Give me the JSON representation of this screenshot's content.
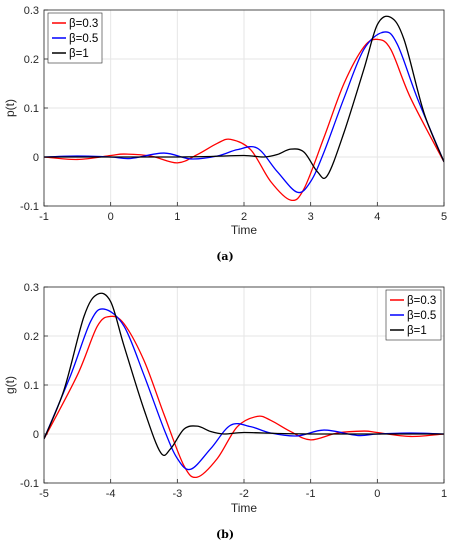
{
  "chart_data": [
    {
      "type": "line",
      "panel": "(a)",
      "xlabel": "Time",
      "ylabel": "p(t)",
      "xlim": [
        -1,
        5
      ],
      "ylim": [
        -0.1,
        0.3
      ],
      "xticks": [
        "-1",
        "0",
        "1",
        "2",
        "3",
        "4",
        "5"
      ],
      "yticks": [
        "-0.1",
        "0",
        "0.1",
        "0.2",
        "0.3"
      ],
      "grid": true,
      "legend_position": "top-left",
      "series": [
        {
          "name": "β=0.3",
          "color": "#ff0000",
          "x": [
            -1,
            -0.5,
            0,
            0.2,
            0.6,
            1,
            1.3,
            1.6,
            1.8,
            2.1,
            2.4,
            2.7,
            2.9,
            3.2,
            3.5,
            3.8,
            4.0,
            4.2,
            4.5,
            5
          ],
          "y": [
            0,
            -0.005,
            0.003,
            0.006,
            0.002,
            -0.012,
            0.005,
            0.028,
            0.036,
            0.015,
            -0.05,
            -0.088,
            -0.065,
            0.04,
            0.15,
            0.225,
            0.24,
            0.22,
            0.12,
            -0.01
          ]
        },
        {
          "name": "β=0.5",
          "color": "#0000ff",
          "x": [
            -1,
            -0.5,
            0,
            0.3,
            0.8,
            1.2,
            1.6,
            1.9,
            2.2,
            2.5,
            2.8,
            3.0,
            3.2,
            3.5,
            3.8,
            4.1,
            4.3,
            4.6,
            5
          ],
          "y": [
            0,
            0.002,
            0,
            -0.003,
            0.008,
            -0.004,
            0.002,
            0.015,
            0.018,
            -0.03,
            -0.072,
            -0.05,
            0.01,
            0.12,
            0.22,
            0.255,
            0.23,
            0.12,
            -0.01
          ]
        },
        {
          "name": "β=1",
          "color": "#000000",
          "x": [
            -1,
            -0.5,
            0,
            0.5,
            1,
            1.5,
            2,
            2.3,
            2.5,
            2.7,
            2.9,
            3.1,
            3.25,
            3.5,
            3.8,
            4.0,
            4.2,
            4.4,
            4.7,
            5
          ],
          "y": [
            0,
            0,
            0,
            0,
            0,
            0.001,
            0.003,
            0,
            0.005,
            0.016,
            0.01,
            -0.03,
            -0.038,
            0.05,
            0.18,
            0.27,
            0.285,
            0.24,
            0.09,
            -0.01
          ]
        }
      ]
    },
    {
      "type": "line",
      "panel": "(b)",
      "xlabel": "Time",
      "ylabel": "g(t)",
      "xlim": [
        -5,
        1
      ],
      "ylim": [
        -0.1,
        0.3
      ],
      "xticks": [
        "-5",
        "-4",
        "-3",
        "-2",
        "-1",
        "0",
        "1"
      ],
      "yticks": [
        "-0.1",
        "0",
        "0.1",
        "0.2",
        "0.3"
      ],
      "grid": true,
      "legend_position": "top-right",
      "series": [
        {
          "name": "β=0.3",
          "color": "#ff0000",
          "x": [
            -5,
            -4.5,
            -4.2,
            -4.0,
            -3.8,
            -3.5,
            -3.2,
            -2.9,
            -2.7,
            -2.4,
            -2.1,
            -1.8,
            -1.6,
            -1.3,
            -1,
            -0.6,
            -0.2,
            0,
            0.5,
            1
          ],
          "y": [
            -0.01,
            0.12,
            0.22,
            0.24,
            0.225,
            0.15,
            0.04,
            -0.065,
            -0.088,
            -0.05,
            0.015,
            0.036,
            0.028,
            0.005,
            -0.012,
            0.002,
            0.006,
            0.003,
            -0.005,
            0
          ]
        },
        {
          "name": "β=0.5",
          "color": "#0000ff",
          "x": [
            -5,
            -4.6,
            -4.3,
            -4.1,
            -3.8,
            -3.5,
            -3.2,
            -3.0,
            -2.8,
            -2.5,
            -2.2,
            -1.9,
            -1.6,
            -1.2,
            -0.8,
            -0.3,
            0,
            0.5,
            1
          ],
          "y": [
            -0.01,
            0.12,
            0.23,
            0.255,
            0.22,
            0.12,
            0.01,
            -0.05,
            -0.072,
            -0.03,
            0.018,
            0.015,
            0.002,
            -0.004,
            0.008,
            -0.003,
            0,
            0.002,
            0
          ]
        },
        {
          "name": "β=1",
          "color": "#000000",
          "x": [
            -5,
            -4.7,
            -4.4,
            -4.2,
            -4.0,
            -3.8,
            -3.5,
            -3.25,
            -3.1,
            -2.9,
            -2.7,
            -2.5,
            -2.3,
            -2,
            -1.5,
            -1,
            -0.5,
            0,
            0.5,
            1
          ],
          "y": [
            -0.01,
            0.09,
            0.24,
            0.285,
            0.27,
            0.18,
            0.05,
            -0.038,
            -0.03,
            0.01,
            0.016,
            0.005,
            0,
            0.003,
            0.001,
            0,
            0,
            0,
            0,
            0
          ]
        }
      ]
    }
  ]
}
